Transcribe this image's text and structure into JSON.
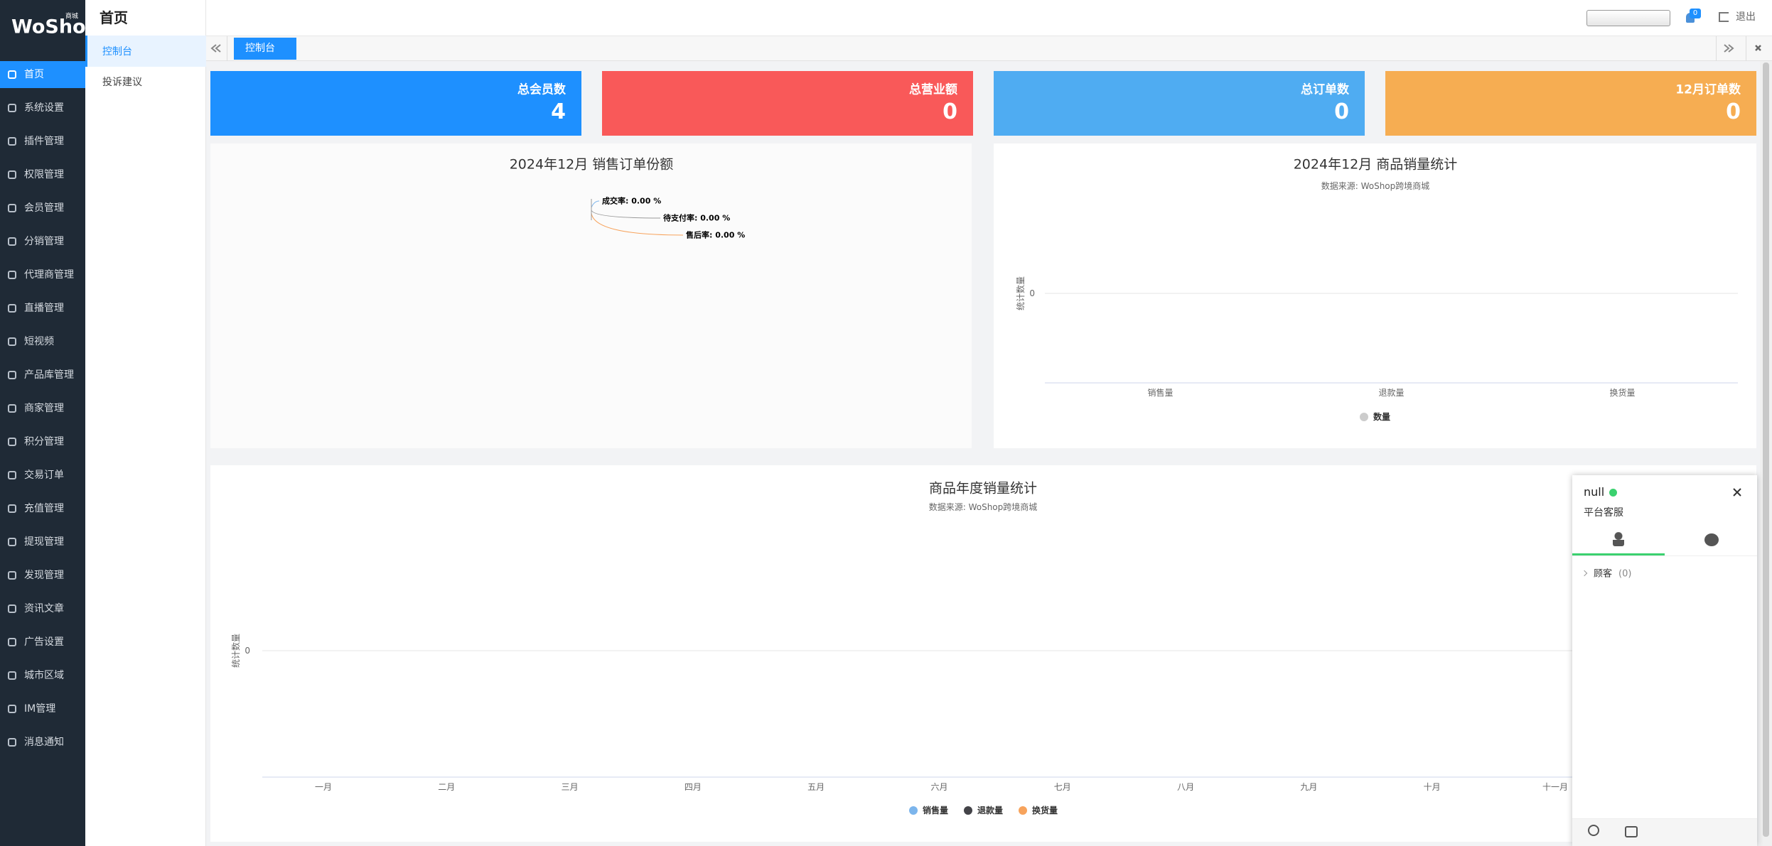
{
  "sidebar": {
    "logo": "WoShop",
    "logo_sub": "商城",
    "menu": [
      "首页",
      "系统设置",
      "插件管理",
      "权限管理",
      "会员管理",
      "分销管理",
      "代理商管理",
      "直播管理",
      "短视频",
      "产品库管理",
      "商家管理",
      "积分管理",
      "交易订单",
      "充值管理",
      "提现管理",
      "发现管理",
      "资讯文章",
      "广告设置",
      "城市区域",
      "IM管理",
      "消息通知"
    ]
  },
  "submenu": {
    "title": "首页",
    "items": [
      "控制台",
      "投诉建议"
    ]
  },
  "topbar": {
    "badge": 0,
    "logout": "退出"
  },
  "tabs": [
    "控制台"
  ],
  "stats": [
    {
      "label": "总会员数",
      "value": 4,
      "color": "#1e90ff"
    },
    {
      "label": "总营业额",
      "value": 0,
      "color": "#f95959"
    },
    {
      "label": "总订单数",
      "value": 0,
      "color": "#4facf2"
    },
    {
      "label": "12月订单数",
      "value": 0,
      "color": "#f6ad52"
    }
  ],
  "order_share_chart": {
    "title": "2024年12月 销售订单份额",
    "labels": [
      "成交率: 0.00 %",
      "待支付率: 0.00 %",
      "售后率: 0.00 %"
    ]
  },
  "sales_chart": {
    "title": "2024年12月 商品销量统计",
    "subtitle": "数据来源: WoShop跨境商城",
    "y_label": "统计数量",
    "yticks": [
      0
    ],
    "categories": [
      "销售量",
      "退款量",
      "换货量"
    ],
    "legend": "数量",
    "legend_color": "#cccccc"
  },
  "annual_chart": {
    "title": "商品年度销量统计",
    "subtitle": "数据来源: WoShop跨境商城",
    "y_label": "统计数量",
    "yticks": [
      0
    ],
    "months": [
      "一月",
      "二月",
      "三月",
      "四月",
      "五月",
      "六月",
      "七月",
      "八月",
      "九月",
      "十月",
      "十一月"
    ],
    "legend": [
      {
        "name": "销售量",
        "color": "#7cb5ec"
      },
      {
        "name": "退款量",
        "color": "#434348"
      },
      {
        "name": "换货量",
        "color": "#f7a35c"
      }
    ]
  },
  "chat": {
    "user": "null",
    "role": "平台客服",
    "group": "顾客",
    "count": "(0)"
  }
}
